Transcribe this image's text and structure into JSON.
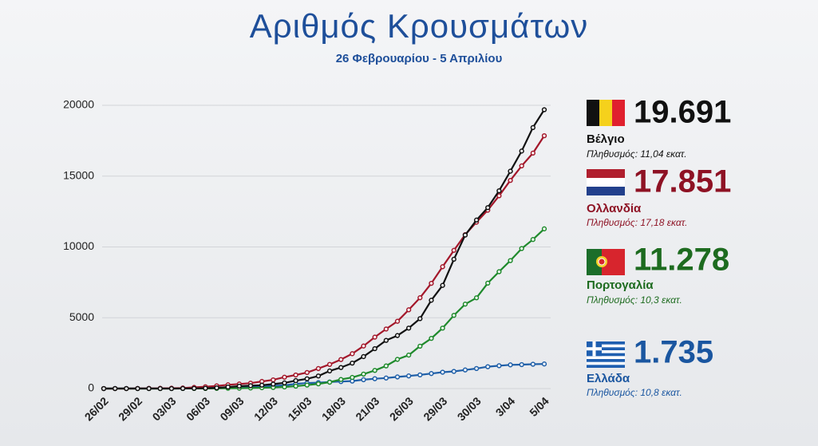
{
  "chart_data": {
    "type": "line",
    "title": "Αριθμός Κρουσμάτων",
    "subtitle": "26 Φεβρουαρίου - 5 Απριλίου",
    "categories": [
      "26/02",
      null,
      null,
      "29/02",
      null,
      null,
      "03/03",
      null,
      null,
      "06/03",
      null,
      null,
      "09/03",
      null,
      null,
      "12/03",
      null,
      null,
      "15/03",
      null,
      null,
      "18/03",
      null,
      null,
      "21/03",
      null,
      null,
      "26/03",
      null,
      null,
      "29/03",
      null,
      null,
      "30/03",
      null,
      null,
      "3/04",
      null,
      null,
      "5/04"
    ],
    "ylim": [
      0,
      20000
    ],
    "yticks": [
      0,
      5000,
      10000,
      15000,
      20000
    ],
    "grid": true,
    "series": [
      {
        "name": "Βέλγιο",
        "color": "#111111",
        "label_color": "#111111",
        "population": "Πληθυσμός: 11,04 εκατ.",
        "values": [
          0,
          0,
          0,
          0,
          0,
          1,
          2,
          8,
          13,
          23,
          50,
          109,
          169,
          200,
          239,
          314,
          399,
          559,
          689,
          886,
          1243,
          1486,
          1795,
          2257,
          2815,
          3401,
          3743,
          4269,
          4937,
          6235,
          7284,
          9134,
          10836,
          11899,
          12775,
          13964,
          15348,
          16770,
          18431,
          19691
        ],
        "value_labels": [
          null,
          null,
          null,
          null,
          null,
          null,
          null,
          null,
          null,
          null,
          null,
          null,
          null,
          null,
          null,
          null,
          null,
          null,
          null,
          null,
          null,
          null,
          null,
          null,
          null,
          null,
          null,
          null,
          null,
          null,
          null,
          null,
          null,
          null,
          null,
          null,
          null,
          null,
          null,
          "19.691"
        ]
      },
      {
        "name": "Ολλανδία",
        "color": "#a3172a",
        "label_color": "#8e1224",
        "population": "Πληθυσμός: 17,18 εκατ.",
        "values": [
          0,
          1,
          2,
          7,
          13,
          18,
          24,
          38,
          82,
          128,
          188,
          265,
          321,
          382,
          503,
          614,
          804,
          959,
          1135,
          1413,
          1705,
          2051,
          2460,
          3003,
          3631,
          4204,
          4749,
          5560,
          6412,
          7431,
          8603,
          9762,
          10866,
          11750,
          12595,
          13614,
          14697,
          15723,
          16627,
          17851
        ],
        "value_labels": [
          null,
          null,
          null,
          null,
          null,
          null,
          null,
          null,
          null,
          null,
          null,
          null,
          null,
          null,
          null,
          null,
          null,
          null,
          null,
          null,
          null,
          null,
          null,
          null,
          null,
          null,
          null,
          null,
          null,
          null,
          null,
          null,
          null,
          null,
          null,
          null,
          null,
          null,
          null,
          "17.851"
        ]
      },
      {
        "name": "Πορτογαλία",
        "color": "#1f8a2c",
        "label_color": "#1d6b1f",
        "population": "Πληθυσμός: 10,3 εκατ.",
        "values": [
          0,
          0,
          0,
          0,
          0,
          0,
          2,
          4,
          5,
          8,
          13,
          21,
          30,
          41,
          59,
          78,
          112,
          169,
          245,
          331,
          448,
          642,
          785,
          1020,
          1280,
          1600,
          2060,
          2362,
          2995,
          3544,
          4268,
          5170,
          5962,
          6408,
          7443,
          8251,
          9034,
          9886,
          10524,
          11278
        ],
        "value_labels": [
          null,
          null,
          null,
          null,
          null,
          null,
          null,
          null,
          null,
          null,
          null,
          null,
          null,
          null,
          null,
          null,
          null,
          null,
          null,
          null,
          null,
          null,
          null,
          null,
          null,
          null,
          null,
          null,
          null,
          null,
          null,
          null,
          null,
          null,
          null,
          null,
          null,
          null,
          null,
          "11.278"
        ]
      },
      {
        "name": "Ελλάδα",
        "color": "#1f5fa8",
        "label_color": "#1a56a0",
        "population": "Πληθυσμός: 10,8 εκατ.",
        "values": [
          1,
          3,
          4,
          4,
          7,
          7,
          7,
          9,
          31,
          45,
          66,
          73,
          89,
          99,
          117,
          190,
          228,
          331,
          387,
          418,
          464,
          495,
          530,
          624,
          695,
          743,
          821,
          892,
          966,
          1061,
          1156,
          1212,
          1314,
          1415,
          1544,
          1613,
          1673,
          1690,
          1718,
          1735
        ],
        "value_labels": [
          null,
          null,
          null,
          null,
          null,
          null,
          null,
          null,
          null,
          null,
          null,
          null,
          null,
          null,
          null,
          null,
          null,
          null,
          null,
          null,
          null,
          null,
          null,
          null,
          null,
          null,
          null,
          null,
          null,
          null,
          null,
          null,
          null,
          null,
          null,
          null,
          null,
          null,
          null,
          "1.735"
        ]
      }
    ]
  }
}
